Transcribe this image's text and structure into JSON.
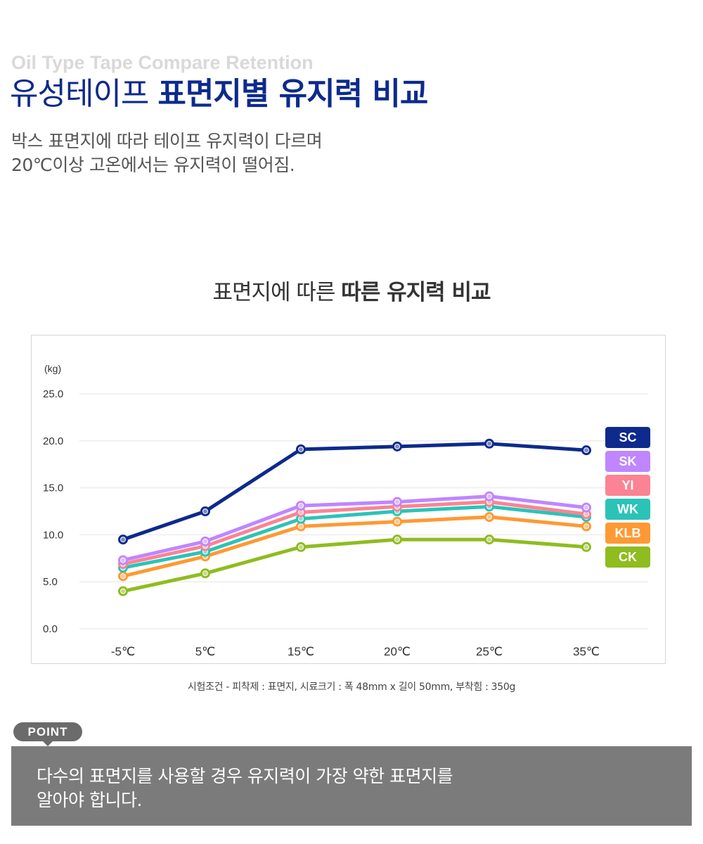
{
  "header": {
    "eng_title": "Oil Type Tape Compare Retention",
    "title_normal": "유성테이프 ",
    "title_bold": "표면지별 유지력 비교",
    "desc_line1": "박스 표면지에 따라 테이프 유지력이 다르며",
    "desc_line2": "20℃이상 고온에서는 유지력이 떨어짐."
  },
  "chart_title": {
    "normal": "표면지에 따른 ",
    "bold": "따른 유지력 비교"
  },
  "chart_data": {
    "type": "line",
    "ylabel": "(kg)",
    "xlabel": "",
    "categories": [
      "-5℃",
      "5℃",
      "15℃",
      "20℃",
      "25℃",
      "35℃"
    ],
    "ylim": [
      0,
      25
    ],
    "yticks": [
      "25.0",
      "20.0",
      "15.0",
      "10.0",
      "5.0",
      "0.0"
    ],
    "ytick_values": [
      25,
      20,
      15,
      10,
      5,
      0
    ],
    "grid": true,
    "legend_position": "right",
    "series": [
      {
        "name": "SC",
        "color": "#0d2a8c",
        "values": [
          9.5,
          12.5,
          19.1,
          19.4,
          19.7,
          19.0
        ]
      },
      {
        "name": "SK",
        "color": "#bf86ff",
        "values": [
          7.3,
          9.3,
          13.1,
          13.5,
          14.1,
          12.9
        ]
      },
      {
        "name": "YI",
        "color": "#fb8393",
        "values": [
          6.9,
          8.8,
          12.4,
          13.0,
          13.5,
          12.2
        ]
      },
      {
        "name": "WK",
        "color": "#2bc3b8",
        "values": [
          6.5,
          8.2,
          11.7,
          12.5,
          13.0,
          11.9
        ]
      },
      {
        "name": "KLB",
        "color": "#ff9933",
        "values": [
          5.6,
          7.7,
          10.9,
          11.4,
          11.9,
          10.9
        ]
      },
      {
        "name": "CK",
        "color": "#8fbc1f",
        "values": [
          4.0,
          5.9,
          8.7,
          9.5,
          9.5,
          8.7
        ]
      }
    ]
  },
  "test_condition": "시험조건 -  피착제 : 표면지, 시료크기 : 폭 48mm x 길이 50mm, 부착힘 : 350g",
  "point": {
    "badge": "POINT",
    "line1": "다수의 표면지를 사용할 경우 유지력이 가장 약한 표면지를",
    "line2": "알아야 합니다."
  }
}
